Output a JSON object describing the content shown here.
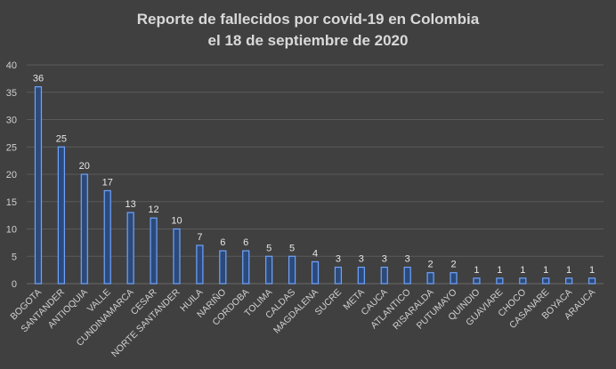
{
  "chart_data": {
    "type": "bar",
    "title_lines": [
      "Reporte de fallecidos por covid-19 en Colombia",
      "el 18 de septiembre de 2020"
    ],
    "categories": [
      "BOGOTA",
      "SANTANDER",
      "ANTIOQUIA",
      "VALLE",
      "CUNDINAMARCA",
      "CESAR",
      "NORTE SANTANDER",
      "HUILA",
      "NARIÑO",
      "CORDOBA",
      "TOLIMA",
      "CALDAS",
      "MAGDALENA",
      "SUCRE",
      "META",
      "CAUCA",
      "ATLANTICO",
      "RISARALDA",
      "PUTUMAYO",
      "QUINDIO",
      "GUAVIARE",
      "CHOCO",
      "CASANARE",
      "BOYACA",
      "ARAUCA"
    ],
    "values": [
      36,
      25,
      20,
      17,
      13,
      12,
      10,
      7,
      6,
      6,
      5,
      5,
      4,
      3,
      3,
      3,
      3,
      2,
      2,
      1,
      1,
      1,
      1,
      1,
      1
    ],
    "ylim": [
      0,
      40
    ],
    "yticks": [
      0,
      5,
      10,
      15,
      20,
      25,
      30,
      35,
      40
    ],
    "grid": true,
    "legend": "none",
    "colors": {
      "background": "#404040",
      "bar_fill": "#2b4a7a",
      "bar_edge": "#6fa3ff",
      "text": "#d9d9d9"
    }
  }
}
